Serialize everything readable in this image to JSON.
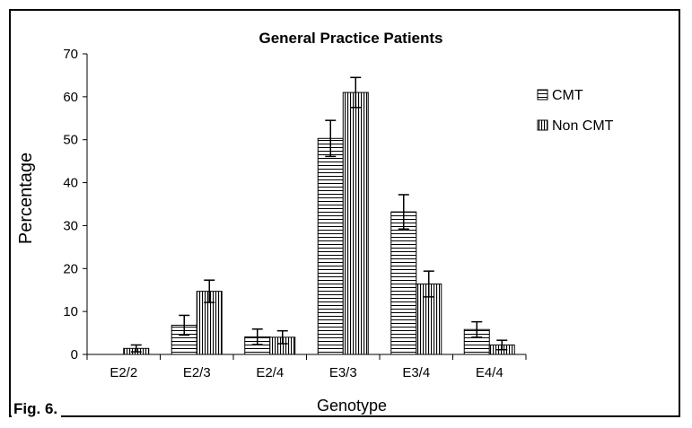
{
  "figure_label": "Fig. 6.",
  "chart_data": {
    "type": "bar",
    "title": "General Practice Patients",
    "xlabel": "Genotype",
    "ylabel": "Percentage",
    "categories": [
      "E2/2",
      "E2/3",
      "E2/4",
      "E3/3",
      "E3/4",
      "E4/4"
    ],
    "ylim": [
      0,
      70
    ],
    "yticks": [
      0,
      10,
      20,
      30,
      40,
      50,
      60,
      70
    ],
    "legend_position": "right",
    "series": [
      {
        "name": "CMT",
        "pattern": "horizontal-stripes",
        "values": [
          0,
          6.8,
          4.1,
          50.3,
          33.2,
          5.8
        ],
        "error": [
          0,
          2.3,
          1.8,
          4.2,
          4.0,
          1.8
        ]
      },
      {
        "name": "Non CMT",
        "pattern": "vertical-stripes",
        "values": [
          1.4,
          14.7,
          4.0,
          61.0,
          16.4,
          2.2
        ],
        "error": [
          0.8,
          2.6,
          1.5,
          3.5,
          3.0,
          1.1
        ]
      }
    ]
  }
}
